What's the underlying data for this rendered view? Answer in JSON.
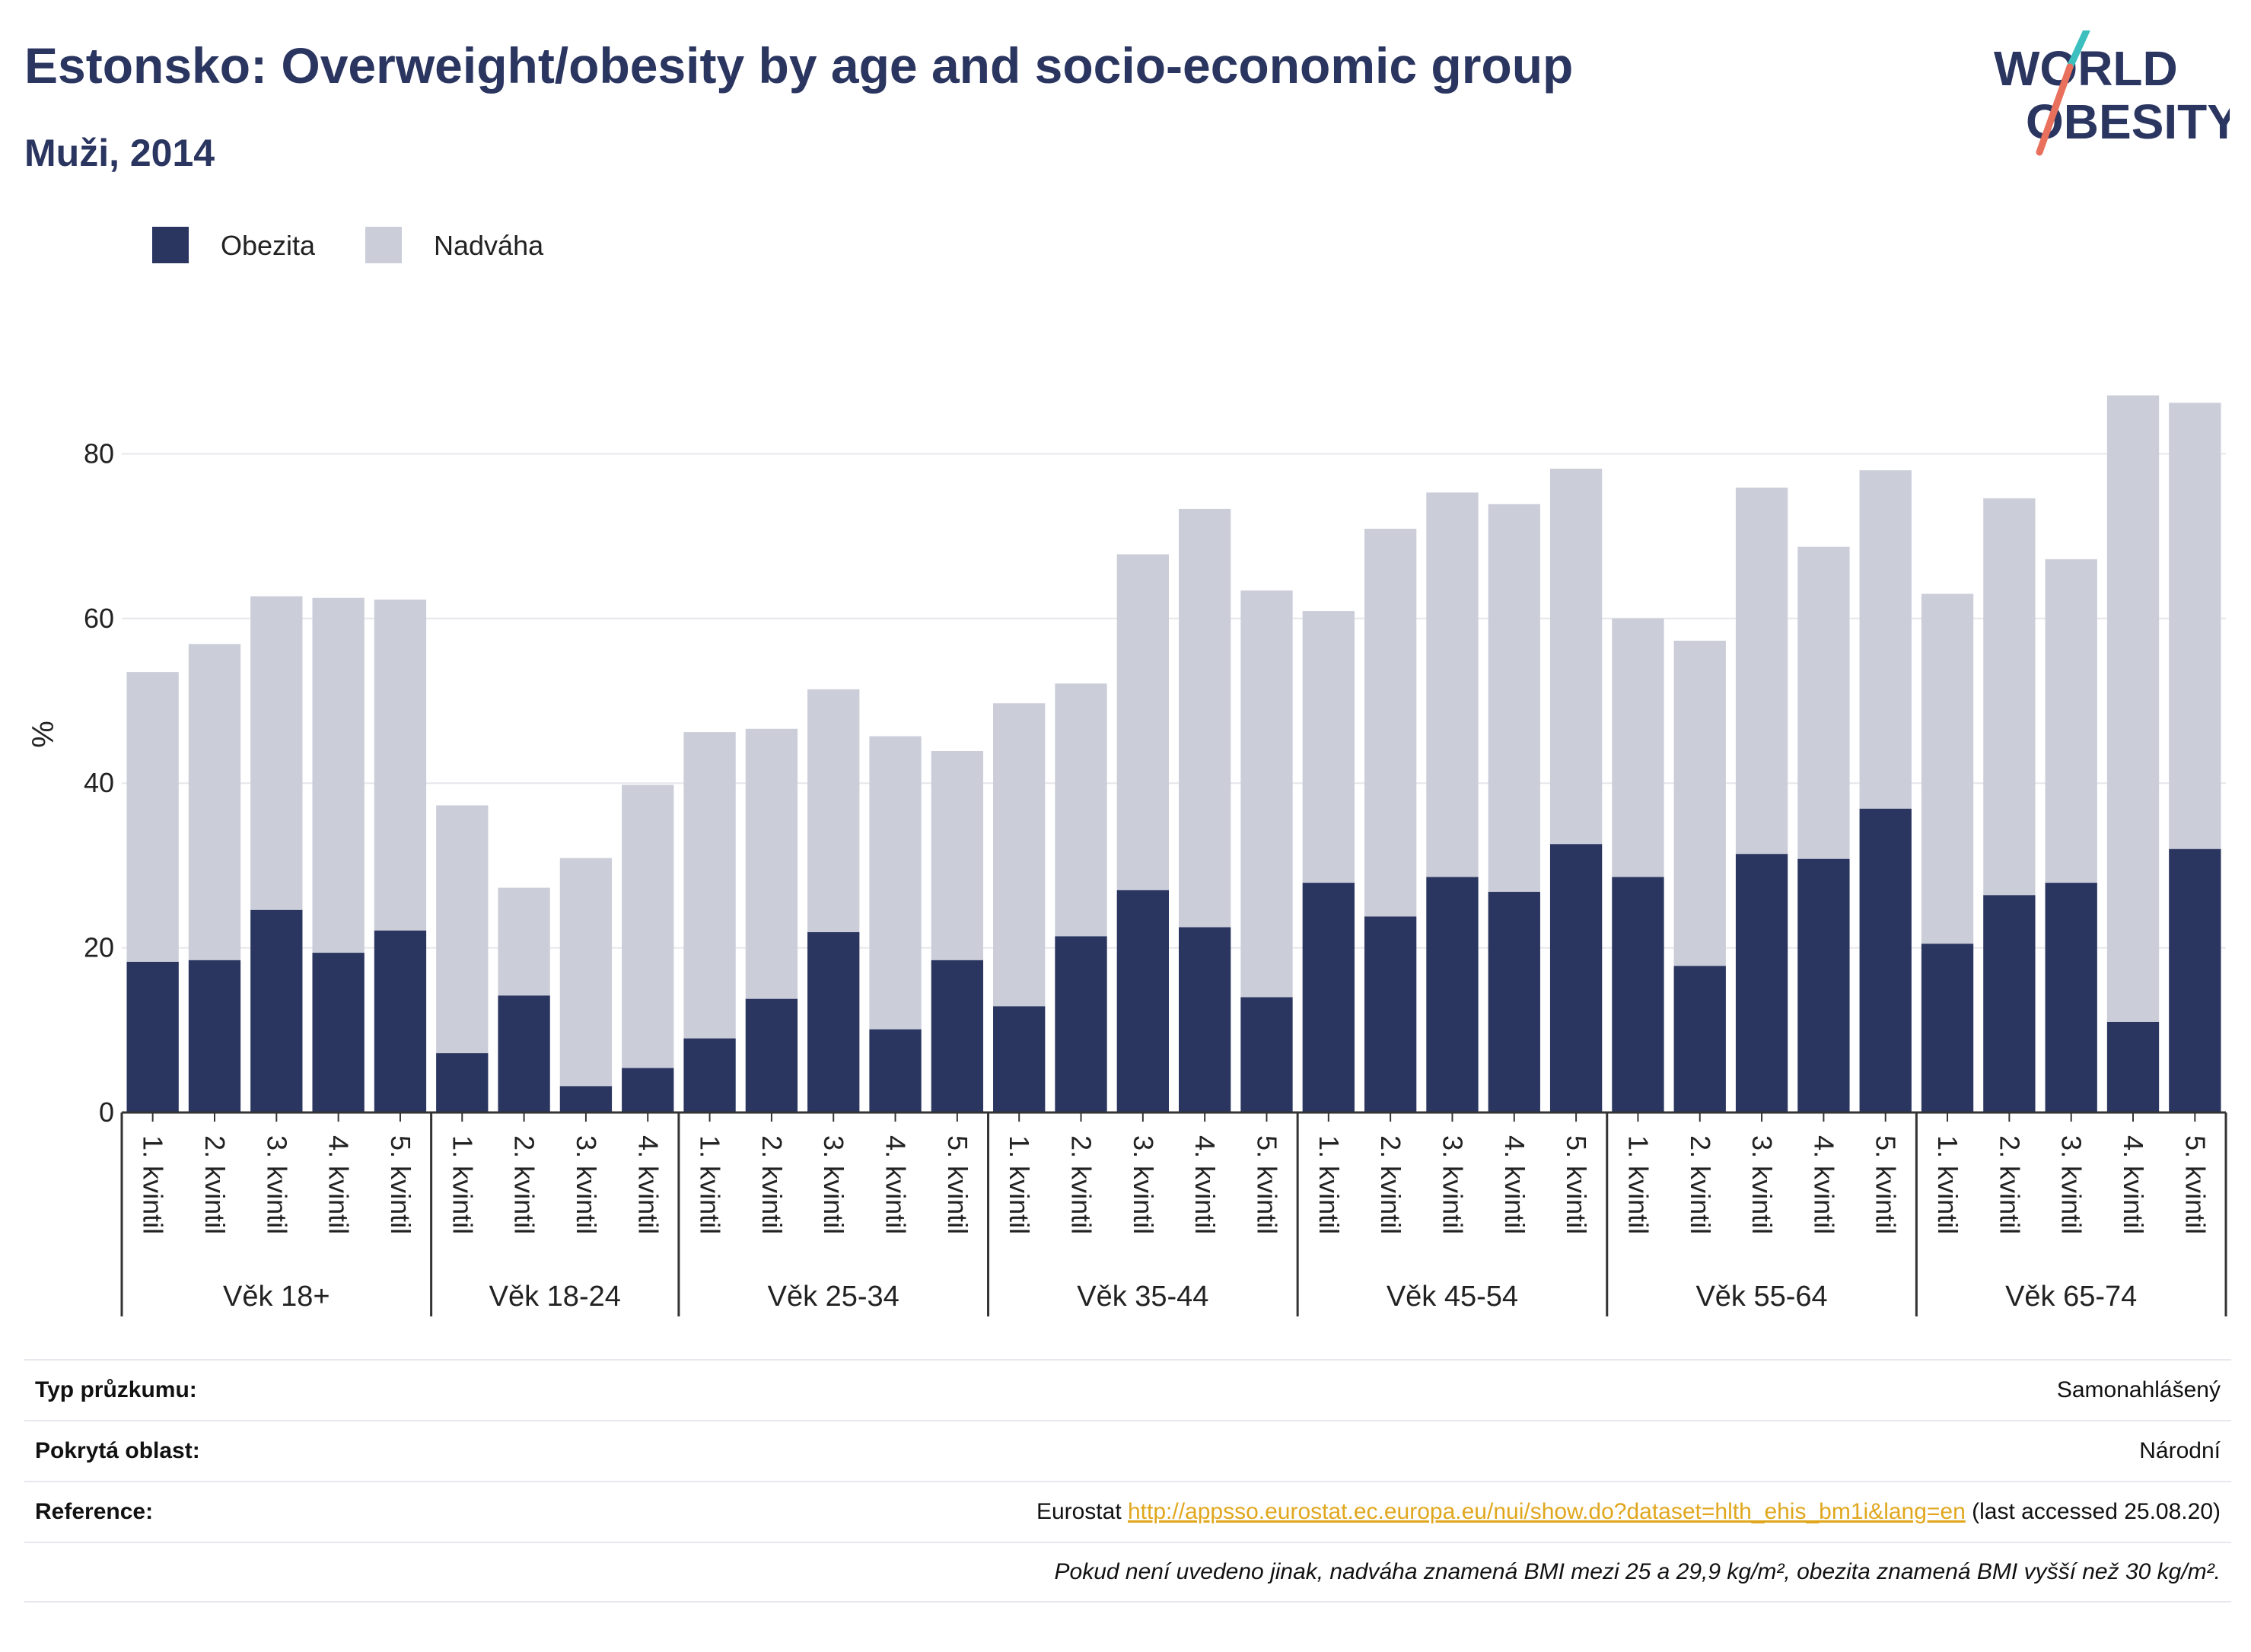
{
  "header": {
    "title": "Estonsko: Overweight/obesity by age and socio-economic group",
    "subtitle": "Muži, 2014"
  },
  "logo": {
    "line1": "WORLD",
    "line2": "OBESITY",
    "accent_teal": "#3bbfbf",
    "accent_coral": "#e8705d",
    "text_color": "#2a3560"
  },
  "colors": {
    "obesity": "#2a3560",
    "overweight": "#cbcdd9",
    "grid": "#e6e6ec",
    "axis": "#333333"
  },
  "info": {
    "survey_label": "Typ průzkumu:",
    "survey_value": "Samonahlášený",
    "area_label": "Pokrytá oblast:",
    "area_value": "Národní",
    "reference_label": "Reference:",
    "reference_prefix": "Eurostat ",
    "reference_link": "http://appsso.eurostat.ec.europa.eu/nui/show.do?dataset=hlth_ehis_bm1i&lang=en",
    "reference_suffix": " (last accessed 25.08.20)",
    "note": "Pokud není uvedeno jinak, nadváha znamená BMI mezi 25 a 29,9 kg/m², obezita znamená BMI vyšší než 30 kg/m²."
  },
  "chart_data": {
    "type": "bar",
    "stacked": true,
    "ylabel": "%",
    "ylim": [
      0,
      90
    ],
    "yticks": [
      0,
      20,
      40,
      60,
      80
    ],
    "grid": true,
    "legend": {
      "placement": "top-left",
      "entries": [
        "Obezita",
        "Nadváha"
      ]
    },
    "groups": [
      {
        "label": "Věk 18+",
        "categories": [
          "1. kvintil",
          "2. kvintil",
          "3. kvintil",
          "4. kvintil",
          "5. kvintil"
        ],
        "obezita": [
          18.3,
          18.5,
          24.6,
          19.4,
          22.1
        ],
        "total": [
          53.5,
          56.9,
          62.7,
          62.5,
          62.3
        ]
      },
      {
        "label": "Věk 18-24",
        "categories": [
          "1. kvintil",
          "2. kvintil",
          "3. kvintil",
          "4. kvintil"
        ],
        "obezita": [
          7.2,
          14.2,
          3.2,
          5.4
        ],
        "total": [
          37.3,
          27.3,
          30.9,
          39.8
        ]
      },
      {
        "label": "Věk 25-34",
        "categories": [
          "1. kvintil",
          "2. kvintil",
          "3. kvintil",
          "4. kvintil",
          "5. kvintil"
        ],
        "obezita": [
          9.0,
          13.8,
          21.9,
          10.1,
          18.5
        ],
        "total": [
          46.2,
          46.6,
          51.4,
          45.7,
          43.9
        ]
      },
      {
        "label": "Věk 35-44",
        "categories": [
          "1. kvintil",
          "2. kvintil",
          "3. kvintil",
          "4. kvintil",
          "5. kvintil"
        ],
        "obezita": [
          12.9,
          21.4,
          27.0,
          22.5,
          14.0
        ],
        "total": [
          49.7,
          52.1,
          67.8,
          73.3,
          63.4
        ]
      },
      {
        "label": "Věk 45-54",
        "categories": [
          "1. kvintil",
          "2. kvintil",
          "3. kvintil",
          "4. kvintil",
          "5. kvintil"
        ],
        "obezita": [
          27.9,
          23.8,
          28.6,
          26.8,
          32.6
        ],
        "total": [
          60.9,
          70.9,
          75.3,
          73.9,
          78.2
        ]
      },
      {
        "label": "Věk 55-64",
        "categories": [
          "1. kvintil",
          "2. kvintil",
          "3. kvintil",
          "4. kvintil",
          "5. kvintil"
        ],
        "obezita": [
          28.6,
          17.8,
          31.4,
          30.8,
          36.9
        ],
        "total": [
          60.0,
          57.3,
          75.9,
          68.7,
          78.0
        ]
      },
      {
        "label": "Věk 65-74",
        "categories": [
          "1. kvintil",
          "2. kvintil",
          "3. kvintil",
          "4. kvintil",
          "5. kvintil"
        ],
        "obezita": [
          20.5,
          26.4,
          27.9,
          11.0,
          32.0
        ],
        "total": [
          63.0,
          74.6,
          67.2,
          87.1,
          86.2
        ]
      }
    ]
  }
}
